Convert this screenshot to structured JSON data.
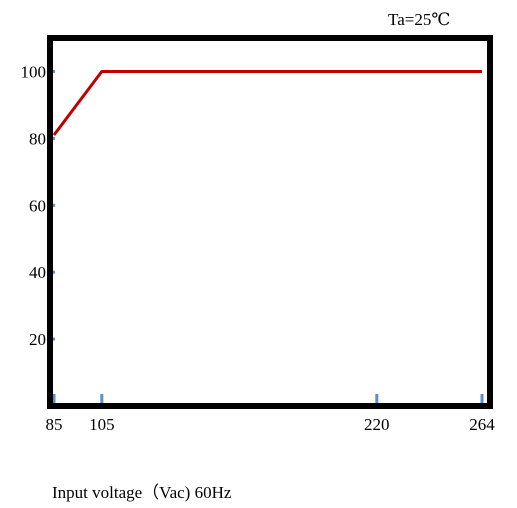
{
  "chart_data": {
    "type": "line",
    "annotation": "Ta=25℃",
    "xlabel": "Input voltage（Vac) 60Hz",
    "ylabel": "",
    "x_ticks": [
      85,
      105,
      220,
      264
    ],
    "y_ticks": [
      20,
      40,
      60,
      80,
      100
    ],
    "xlim": [
      85,
      264
    ],
    "ylim": [
      0,
      110
    ],
    "grid": false,
    "colors": {
      "line": "#c00000",
      "frame": "#000000",
      "tick_marks": "#5b8fc9"
    },
    "series": [
      {
        "x": [
          85,
          105,
          264
        ],
        "y": [
          81,
          100,
          100
        ]
      }
    ]
  }
}
